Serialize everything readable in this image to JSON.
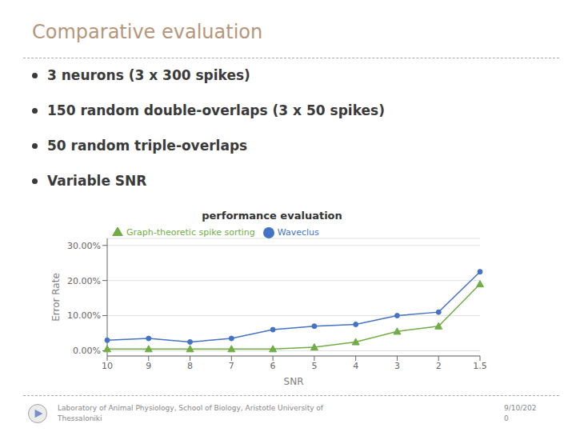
{
  "chart_data": {
    "type": "line",
    "title": "performance evaluation",
    "xlabel": "SNR",
    "ylabel": "Error Rate",
    "categories": [
      "10",
      "9",
      "8",
      "7",
      "6",
      "5",
      "4",
      "3",
      "2",
      "1.5"
    ],
    "series": [
      {
        "name": "Waveclus",
        "color": "#4472c4",
        "marker": "circle",
        "values": [
          3.0,
          3.5,
          2.5,
          3.5,
          6.0,
          7.0,
          7.5,
          10.0,
          11.0,
          22.5
        ]
      },
      {
        "name": "Graph-theoretic spike sorting",
        "color": "#70ad47",
        "marker": "triangle",
        "values": [
          0.5,
          0.5,
          0.5,
          0.5,
          0.5,
          1.0,
          2.5,
          5.5,
          7.0,
          19.0
        ]
      }
    ],
    "ylim": [
      -1.5,
      32
    ],
    "yticks": [
      {
        "value": 0,
        "label": "0.00%"
      },
      {
        "value": 10,
        "label": "10.00%"
      },
      {
        "value": 20,
        "label": "20.00%"
      },
      {
        "value": 30,
        "label": "30.00%"
      }
    ],
    "grid": true,
    "legend": "upper left",
    "annotations": [
      "Comparative evaluation",
      "3 neurons (3 x 300 spikes)",
      "150 random double-overlaps (3 x 50 spikes)",
      "50 random triple-overlaps",
      "Variable SNR",
      "Laboratory of Animal Physiology, School of Biology, Aristotle University of\nThessaloniki",
      "9/10/202\n0"
    ]
  }
}
